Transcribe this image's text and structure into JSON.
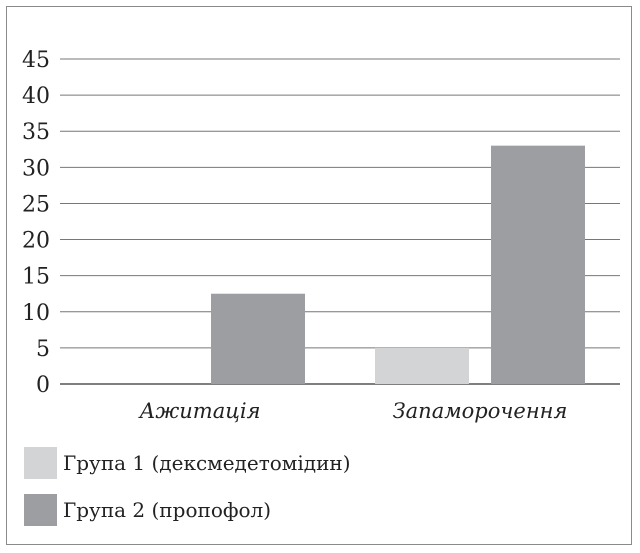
{
  "chart_data": {
    "type": "bar",
    "categories": [
      "Ажитація",
      "Запаморочення"
    ],
    "series": [
      {
        "name": "Група 1 (дексмедетомідин)",
        "values": [
          0,
          5
        ],
        "color": "#d3d4d6"
      },
      {
        "name": "Група 2 (пропофол)",
        "values": [
          12.5,
          33
        ],
        "color": "#9d9ea2"
      }
    ],
    "ylim": [
      0,
      45
    ],
    "yticks": [
      "0",
      "5",
      "10",
      "15",
      "20",
      "25",
      "30",
      "35",
      "40",
      "45"
    ],
    "grid": true,
    "legend_position": "bottom-left"
  }
}
